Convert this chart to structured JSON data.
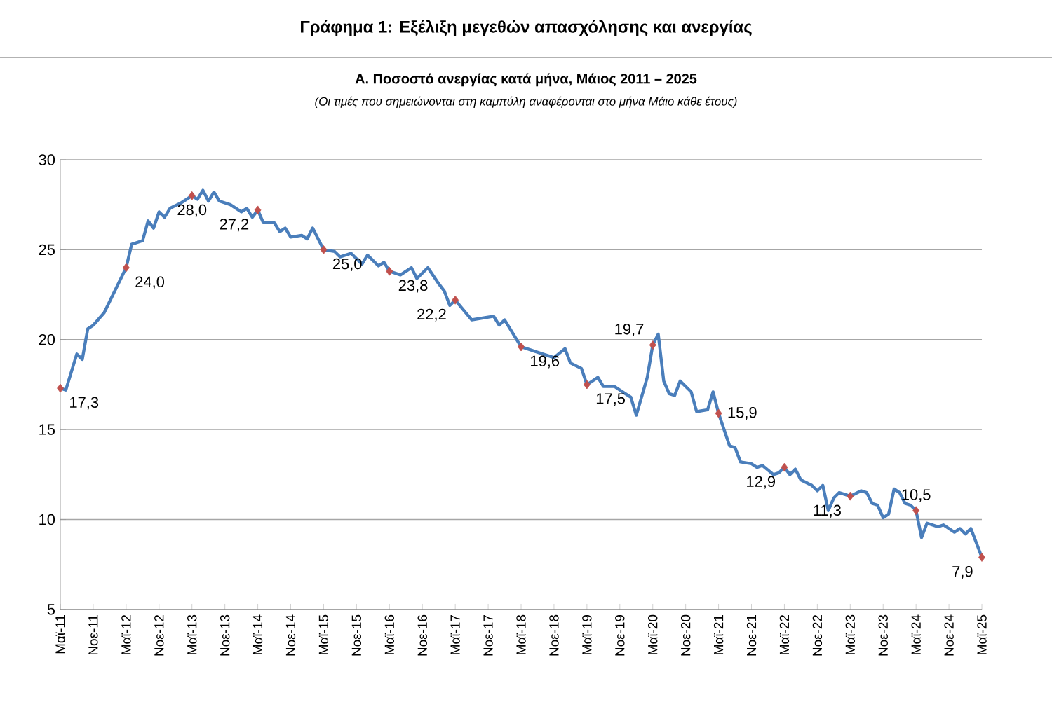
{
  "chart_data": {
    "type": "line",
    "title": "Γράφημα 1: Εξέλιξη μεγεθών απασχόλησης και ανεργίας",
    "subtitle": "Α. Ποσοστό ανεργίας κατά μήνα, Μάιος 2011 – 2025",
    "annotations": [
      "(Οι τιμές που σημειώνονται στη καμπύλη αναφέρονται στο μήνα Μάιο κάθε έτους)"
    ],
    "series": [
      {
        "color": "#4a7ebb",
        "x": [
          "2011-05",
          "2011-06",
          "2011-08",
          "2011-09",
          "2011-10",
          "2011-11",
          "2012-01",
          "2012-05",
          "2012-06",
          "2012-08",
          "2012-09",
          "2012-10",
          "2012-11",
          "2012-12",
          "2013-01",
          "2013-03",
          "2013-05",
          "2013-06",
          "2013-07",
          "2013-08",
          "2013-09",
          "2013-10",
          "2013-12",
          "2014-02",
          "2014-03",
          "2014-04",
          "2014-05",
          "2014-06",
          "2014-08",
          "2014-09",
          "2014-10",
          "2014-11",
          "2015-01",
          "2015-02",
          "2015-03",
          "2015-05",
          "2015-07",
          "2015-08",
          "2015-10",
          "2015-11",
          "2015-12",
          "2016-01",
          "2016-03",
          "2016-04",
          "2016-05",
          "2016-07",
          "2016-09",
          "2016-10",
          "2016-12",
          "2017-02",
          "2017-03",
          "2017-04",
          "2017-05",
          "2017-08",
          "2017-10",
          "2017-12",
          "2018-01",
          "2018-02",
          "2018-05",
          "2018-07",
          "2018-09",
          "2018-11",
          "2019-01",
          "2019-02",
          "2019-04",
          "2019-05",
          "2019-07",
          "2019-08",
          "2019-10",
          "2019-12",
          "2020-01",
          "2020-02",
          "2020-04",
          "2020-05",
          "2020-06",
          "2020-07",
          "2020-08",
          "2020-09",
          "2020-10",
          "2020-12",
          "2021-01",
          "2021-03",
          "2021-04",
          "2021-05",
          "2021-07",
          "2021-08",
          "2021-09",
          "2021-11",
          "2021-12",
          "2022-01",
          "2022-03",
          "2022-04",
          "2022-05",
          "2022-06",
          "2022-07",
          "2022-08",
          "2022-10",
          "2022-11",
          "2022-12",
          "2023-01",
          "2023-02",
          "2023-03",
          "2023-05",
          "2023-07",
          "2023-08",
          "2023-09",
          "2023-10",
          "2023-11",
          "2023-12",
          "2024-01",
          "2024-02",
          "2024-03",
          "2024-04",
          "2024-05",
          "2024-06",
          "2024-07",
          "2024-09",
          "2024-10",
          "2024-12",
          "2025-01",
          "2025-02",
          "2025-03",
          "2025-04",
          "2025-05"
        ],
        "values": [
          17.3,
          17.2,
          19.2,
          18.9,
          20.6,
          20.8,
          21.5,
          24.0,
          25.3,
          25.5,
          26.6,
          26.2,
          27.1,
          26.8,
          27.3,
          27.6,
          28.0,
          27.8,
          28.3,
          27.7,
          28.2,
          27.7,
          27.5,
          27.1,
          27.3,
          26.8,
          27.2,
          26.5,
          26.5,
          26.0,
          26.2,
          25.7,
          25.8,
          25.6,
          26.2,
          25.0,
          24.9,
          24.6,
          24.8,
          24.5,
          24.2,
          24.7,
          24.1,
          24.3,
          23.8,
          23.6,
          24.0,
          23.4,
          24.0,
          23.1,
          22.7,
          21.9,
          22.2,
          21.1,
          21.2,
          21.3,
          20.8,
          21.1,
          19.6,
          19.4,
          19.2,
          19.0,
          19.5,
          18.7,
          18.4,
          17.5,
          17.9,
          17.4,
          17.4,
          17.0,
          16.8,
          15.8,
          17.9,
          19.7,
          20.3,
          17.7,
          17.0,
          16.9,
          17.7,
          17.1,
          16.0,
          16.1,
          17.1,
          15.9,
          14.1,
          14.0,
          13.2,
          13.1,
          12.9,
          13.0,
          12.5,
          12.6,
          12.9,
          12.5,
          12.8,
          12.2,
          11.9,
          11.6,
          11.9,
          10.5,
          11.2,
          11.5,
          11.3,
          11.6,
          11.5,
          10.9,
          10.8,
          10.1,
          10.3,
          11.7,
          11.5,
          10.9,
          10.8,
          10.5,
          9.0,
          9.8,
          9.6,
          9.7,
          9.3,
          9.5,
          9.2,
          9.5,
          8.7,
          7.9
        ]
      },
      {
        "type": "scatter",
        "color": "#c0504d",
        "marker": "diamond",
        "x": [
          "2011-05",
          "2012-05",
          "2013-05",
          "2014-05",
          "2015-05",
          "2016-05",
          "2017-05",
          "2018-05",
          "2019-05",
          "2020-05",
          "2021-05",
          "2022-05",
          "2023-05",
          "2024-05",
          "2025-05"
        ],
        "values": [
          17.3,
          24.0,
          28.0,
          27.2,
          25.0,
          23.8,
          22.2,
          19.6,
          17.5,
          19.7,
          15.9,
          12.9,
          11.3,
          10.5,
          7.9
        ],
        "value_labels": [
          "17,3",
          "24,0",
          "28,0",
          "27,2",
          "25,0",
          "23,8",
          "22,2",
          "19,6",
          "17,5",
          "19,7",
          "15,9",
          "12,9",
          "11,3",
          "10,5",
          "7,9"
        ]
      }
    ],
    "xlim": [
      "2011-05",
      "2025-05"
    ],
    "xticks": [
      {
        "value": "2011-05",
        "label": "Μαϊ-11"
      },
      {
        "value": "2011-11",
        "label": "Νοε-11"
      },
      {
        "value": "2012-05",
        "label": "Μαϊ-12"
      },
      {
        "value": "2012-11",
        "label": "Νοε-12"
      },
      {
        "value": "2013-05",
        "label": "Μαϊ-13"
      },
      {
        "value": "2013-11",
        "label": "Νοε-13"
      },
      {
        "value": "2014-05",
        "label": "Μαϊ-14"
      },
      {
        "value": "2014-11",
        "label": "Νοε-14"
      },
      {
        "value": "2015-05",
        "label": "Μαϊ-15"
      },
      {
        "value": "2015-11",
        "label": "Νοε-15"
      },
      {
        "value": "2016-05",
        "label": "Μαϊ-16"
      },
      {
        "value": "2016-11",
        "label": "Νοε-16"
      },
      {
        "value": "2017-05",
        "label": "Μαϊ-17"
      },
      {
        "value": "2017-11",
        "label": "Νοε-17"
      },
      {
        "value": "2018-05",
        "label": "Μαϊ-18"
      },
      {
        "value": "2018-11",
        "label": "Νοε-18"
      },
      {
        "value": "2019-05",
        "label": "Μαϊ-19"
      },
      {
        "value": "2019-11",
        "label": "Νοε-19"
      },
      {
        "value": "2020-05",
        "label": "Μαϊ-20"
      },
      {
        "value": "2020-11",
        "label": "Νοε-20"
      },
      {
        "value": "2021-05",
        "label": "Μαϊ-21"
      },
      {
        "value": "2021-11",
        "label": "Νοε-21"
      },
      {
        "value": "2022-05",
        "label": "Μαϊ-22"
      },
      {
        "value": "2022-11",
        "label": "Νοε-22"
      },
      {
        "value": "2023-05",
        "label": "Μαϊ-23"
      },
      {
        "value": "2023-11",
        "label": "Νοε-23"
      },
      {
        "value": "2024-05",
        "label": "Μαϊ-24"
      },
      {
        "value": "2024-11",
        "label": "Νοε-24"
      },
      {
        "value": "2025-05",
        "label": "Μαϊ-25"
      }
    ],
    "ylim": [
      5,
      30
    ],
    "yticks": [
      5,
      10,
      15,
      20,
      25,
      30
    ],
    "grid": "y"
  }
}
